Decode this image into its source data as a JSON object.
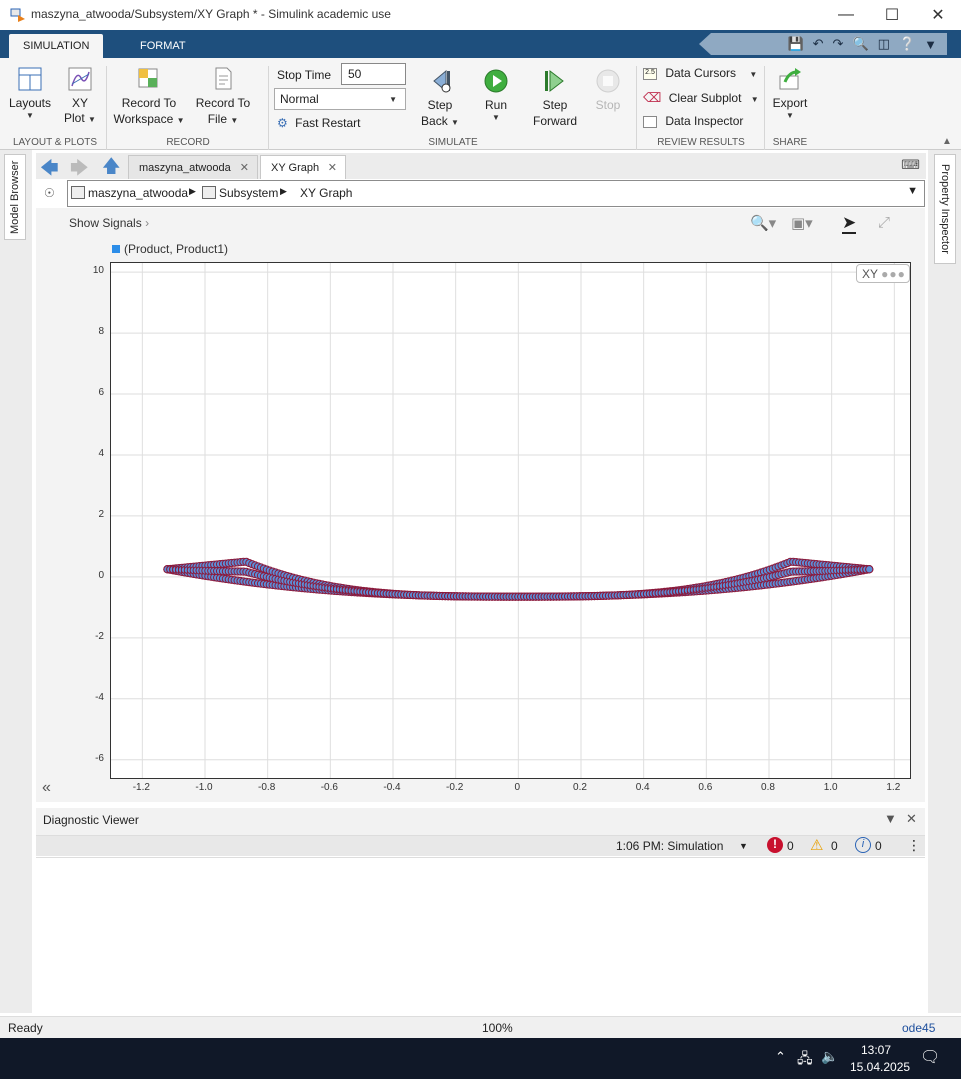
{
  "window": {
    "title": "maszyna_atwooda/Subsystem/XY Graph * - Simulink academic use"
  },
  "ribbon_tabs": [
    "SIMULATION",
    "FORMAT"
  ],
  "ribbon": {
    "layouts": "Layouts",
    "xy_plot_1": "XY",
    "xy_plot_2": "Plot",
    "record_ws_1": "Record To",
    "record_ws_2": "Workspace",
    "record_file_1": "Record To",
    "record_file_2": "File",
    "stop_time_label": "Stop Time",
    "stop_time_value": "50",
    "mode": "Normal",
    "fast_restart": "Fast Restart",
    "step_back_1": "Step",
    "step_back_2": "Back",
    "run": "Run",
    "step_fwd_1": "Step",
    "step_fwd_2": "Forward",
    "stop": "Stop",
    "data_cursors": "Data Cursors",
    "clear_subplot": "Clear Subplot",
    "data_inspector": "Data Inspector",
    "export": "Export",
    "groups": [
      "LAYOUT & PLOTS",
      "RECORD",
      "SIMULATE",
      "REVIEW RESULTS",
      "SHARE"
    ]
  },
  "side": {
    "model_browser": "Model Browser",
    "property_inspector": "Property Inspector"
  },
  "doc_tabs": [
    "maszyna_atwooda",
    "XY Graph"
  ],
  "breadcrumb": [
    "maszyna_atwooda",
    "Subsystem",
    "XY Graph"
  ],
  "show_signals": "Show Signals",
  "xy_badge": "XY",
  "chart_data": {
    "type": "scatter",
    "legend": [
      "(Product, Product1)"
    ],
    "xlim": [
      -1.3,
      1.25
    ],
    "ylim": [
      -6.6,
      10.3
    ],
    "xticks": [
      -1.2,
      -1.0,
      -0.8,
      -0.6,
      -0.4,
      -0.2,
      0,
      0.2,
      0.4,
      0.6,
      0.8,
      1.0,
      1.2
    ],
    "xtick_labels": [
      "-1.2",
      "-1.0",
      "-0.8",
      "-0.6",
      "-0.4",
      "-0.2",
      "0",
      "0.2",
      "0.4",
      "0.6",
      "0.8",
      "1.0",
      "1.2"
    ],
    "yticks": [
      10,
      8,
      6,
      4,
      2,
      0,
      -2,
      -4,
      -6
    ],
    "grid": true,
    "x_range": [
      -1.12,
      1.12
    ],
    "upper_arc": {
      "ends": 0.25,
      "bump_x": 0.87,
      "bump_y": 0.5
    },
    "lower_arc": {
      "ends": 0.25,
      "mid": -0.65
    },
    "marker_fill": "#5b8fd8",
    "marker_edge": "#8b1a3c"
  },
  "diagnostics": {
    "title": "Diagnostic Viewer",
    "run": "1:06 PM: Simulation",
    "errors": "0",
    "warnings": "0",
    "info": "0"
  },
  "status": {
    "left": "Ready",
    "zoom": "100%",
    "solver": "ode45"
  },
  "taskbar": {
    "time": "13:07",
    "date": "15.04.2025"
  }
}
